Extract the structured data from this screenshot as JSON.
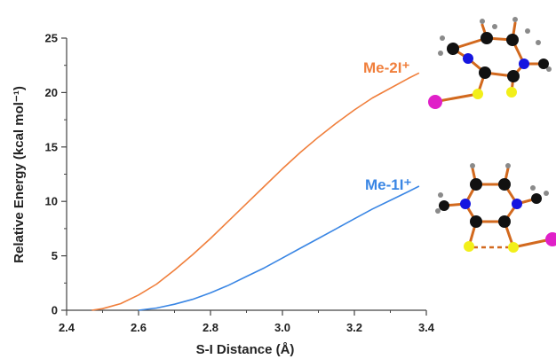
{
  "chart_data": {
    "type": "line",
    "xlabel": "S-I Distance (Å)",
    "ylabel": "Relative Energy (kcal mol⁻¹)",
    "xlim": [
      2.4,
      3.4
    ],
    "ylim": [
      0,
      25
    ],
    "x_ticks": [
      "2.4",
      "2.6",
      "2.8",
      "3.0",
      "3.2",
      "3.4"
    ],
    "y_ticks": [
      "0",
      "5",
      "10",
      "15",
      "20",
      "25"
    ],
    "grid": false,
    "series": [
      {
        "name": "Me-2I⁺",
        "color": "#f07f3c",
        "x": [
          2.47,
          2.5,
          2.55,
          2.6,
          2.65,
          2.7,
          2.75,
          2.8,
          2.85,
          2.9,
          2.95,
          3.0,
          3.05,
          3.1,
          3.15,
          3.2,
          3.25,
          3.3,
          3.35,
          3.38
        ],
        "y": [
          0.0,
          0.15,
          0.6,
          1.4,
          2.4,
          3.7,
          5.1,
          6.6,
          8.2,
          9.8,
          11.4,
          13.0,
          14.5,
          15.9,
          17.2,
          18.4,
          19.5,
          20.4,
          21.3,
          21.8
        ]
      },
      {
        "name": "Me-1I⁺",
        "color": "#3a86e4",
        "x": [
          2.6,
          2.65,
          2.7,
          2.75,
          2.8,
          2.85,
          2.9,
          2.95,
          3.0,
          3.05,
          3.1,
          3.15,
          3.2,
          3.25,
          3.3,
          3.35,
          3.38
        ],
        "y": [
          0.0,
          0.2,
          0.55,
          1.0,
          1.6,
          2.3,
          3.1,
          3.9,
          4.8,
          5.7,
          6.6,
          7.5,
          8.4,
          9.3,
          10.1,
          10.9,
          11.4
        ]
      }
    ]
  }
}
